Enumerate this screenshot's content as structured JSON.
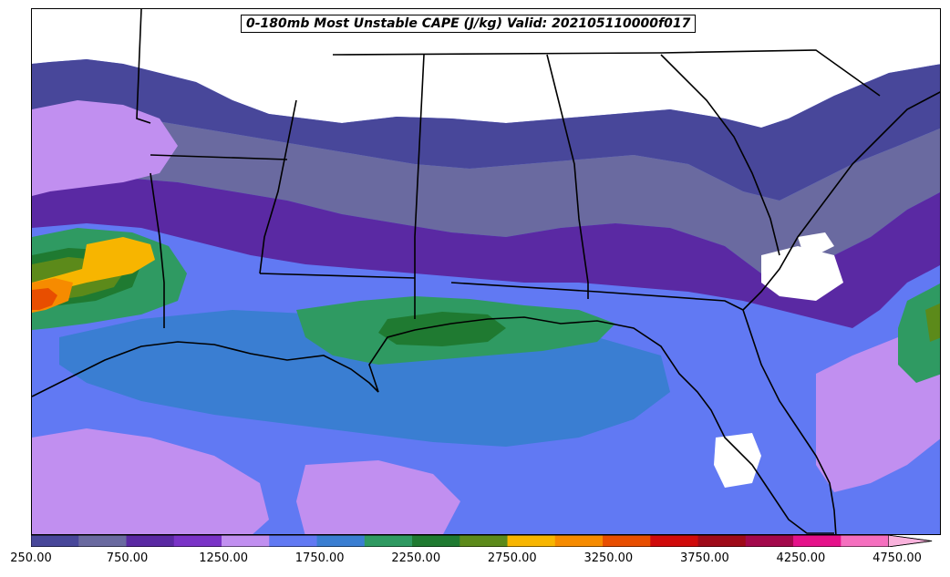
{
  "title": "0-180mb Most Unstable CAPE (J/kg) Valid: 202105110000f017",
  "colorbar": {
    "colors": [
      "#48479a",
      "#6a6aa0",
      "#5a29a3",
      "#7a33c7",
      "#c18ff0",
      "#6179f3",
      "#3a7ed2",
      "#2f9a62",
      "#1f7a31",
      "#5c8a1a",
      "#f7b500",
      "#f68b00",
      "#e84e00",
      "#d00a0a",
      "#9e0a18",
      "#a3084b",
      "#e5118a",
      "#f56fbf"
    ],
    "extend_color": "#f9b2dc",
    "tick_labels": [
      "250.00",
      "750.00",
      "1250.00",
      "1750.00",
      "2250.00",
      "2750.00",
      "3250.00",
      "3750.00",
      "4250.00",
      "4750.00"
    ]
  },
  "map": {
    "palette": {
      "c250": "#48479a",
      "c500": "#6a6aa0",
      "c750": "#5a29a3",
      "c1000": "#7a33c7",
      "c1250": "#c18ff0",
      "c1500": "#6179f3",
      "c1750": "#3a7ed2",
      "c2000": "#2f9a62",
      "c2250": "#1f7a31",
      "c2500": "#5c8a1a",
      "c2750": "#f7b500",
      "c3000": "#f68b00",
      "c3250": "#e84e00",
      "c3500": "#d00a0a"
    }
  }
}
